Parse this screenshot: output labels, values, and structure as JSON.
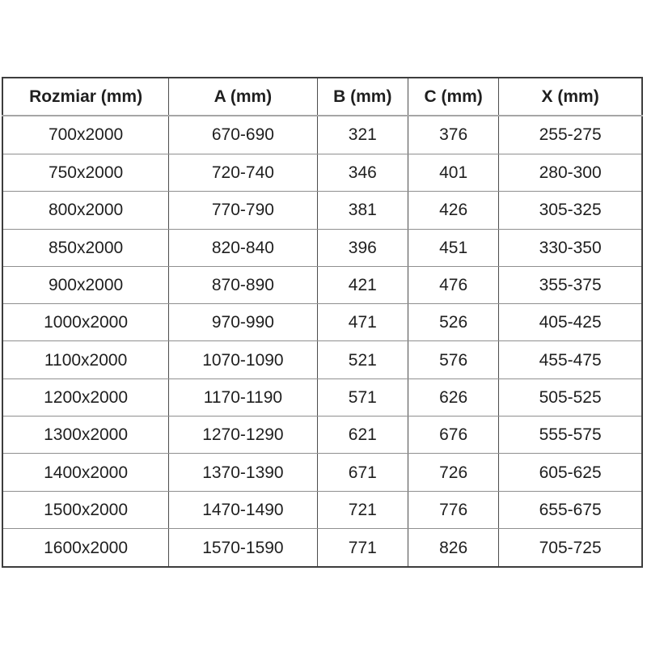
{
  "table": {
    "name": "shower-door-dimensions",
    "headers": [
      "Rozmiar (mm)",
      "A (mm)",
      "B (mm)",
      "C (mm)",
      "X (mm)"
    ],
    "rows": [
      [
        "700x2000",
        "670-690",
        "321",
        "376",
        "255-275"
      ],
      [
        "750x2000",
        "720-740",
        "346",
        "401",
        "280-300"
      ],
      [
        "800x2000",
        "770-790",
        "381",
        "426",
        "305-325"
      ],
      [
        "850x2000",
        "820-840",
        "396",
        "451",
        "330-350"
      ],
      [
        "900x2000",
        "870-890",
        "421",
        "476",
        "355-375"
      ],
      [
        "1000x2000",
        "970-990",
        "471",
        "526",
        "405-425"
      ],
      [
        "1100x2000",
        "1070-1090",
        "521",
        "576",
        "455-475"
      ],
      [
        "1200x2000",
        "1170-1190",
        "571",
        "626",
        "505-525"
      ],
      [
        "1300x2000",
        "1270-1290",
        "621",
        "676",
        "555-575"
      ],
      [
        "1400x2000",
        "1370-1390",
        "671",
        "726",
        "605-625"
      ],
      [
        "1500x2000",
        "1470-1490",
        "721",
        "776",
        "655-675"
      ],
      [
        "1600x2000",
        "1570-1590",
        "771",
        "826",
        "705-725"
      ]
    ],
    "column_widths_pct": [
      26.0,
      23.2,
      14.2,
      14.2,
      22.4
    ],
    "colors": {
      "background": "#ffffff",
      "text": "#1f1f1f",
      "outer_border": "#3d3d3d",
      "vertical_line": "#4d4d4d",
      "row_line": "#8f8f8f",
      "header_separator": "#a6a6a6"
    }
  }
}
